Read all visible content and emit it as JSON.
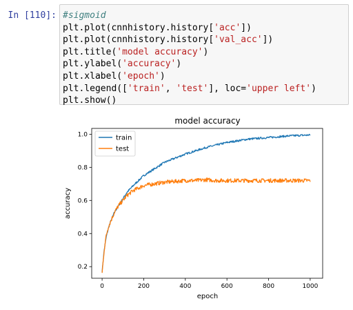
{
  "cell": {
    "prompt": "In [110]:",
    "code_lines": [
      [
        {
          "t": "#sigmoid",
          "c": "comment"
        }
      ],
      [
        {
          "t": "plt.plot(cnnhistory.history[",
          "c": ""
        },
        {
          "t": "'acc'",
          "c": "str"
        },
        {
          "t": "])",
          "c": ""
        }
      ],
      [
        {
          "t": "plt.plot(cnnhistory.history[",
          "c": ""
        },
        {
          "t": "'val_acc'",
          "c": "str"
        },
        {
          "t": "])",
          "c": ""
        }
      ],
      [
        {
          "t": "plt.title(",
          "c": ""
        },
        {
          "t": "'model accuracy'",
          "c": "str"
        },
        {
          "t": ")",
          "c": ""
        }
      ],
      [
        {
          "t": "plt.ylabel(",
          "c": ""
        },
        {
          "t": "'accuracy'",
          "c": "str"
        },
        {
          "t": ")",
          "c": ""
        }
      ],
      [
        {
          "t": "plt.xlabel(",
          "c": ""
        },
        {
          "t": "'epoch'",
          "c": "str"
        },
        {
          "t": ")",
          "c": ""
        }
      ],
      [
        {
          "t": "plt.legend([",
          "c": ""
        },
        {
          "t": "'train'",
          "c": "str"
        },
        {
          "t": ", ",
          "c": ""
        },
        {
          "t": "'test'",
          "c": "str"
        },
        {
          "t": "], loc=",
          "c": ""
        },
        {
          "t": "'upper left'",
          "c": "str"
        },
        {
          "t": ")",
          "c": ""
        }
      ],
      [
        {
          "t": "plt.show()",
          "c": ""
        }
      ]
    ]
  },
  "chart_data": {
    "type": "line",
    "title": "model accuracy",
    "xlabel": "epoch",
    "ylabel": "accuracy",
    "xlim": [
      -50,
      1060
    ],
    "ylim": [
      0.13,
      1.035
    ],
    "xticks": [
      0,
      200,
      400,
      600,
      800,
      1000
    ],
    "yticks": [
      0.2,
      0.4,
      0.6,
      0.8,
      1.0
    ],
    "ytick_labels": [
      "0.2",
      "0.4",
      "0.6",
      "0.8",
      "1.0"
    ],
    "legend_position": "upper-left",
    "series": [
      {
        "name": "train",
        "color": "#1f77b4",
        "x": [
          0,
          10,
          20,
          30,
          40,
          50,
          60,
          80,
          100,
          120,
          150,
          200,
          250,
          300,
          350,
          400,
          450,
          500,
          550,
          600,
          650,
          700,
          750,
          800,
          850,
          900,
          950,
          1000
        ],
        "y": [
          0.17,
          0.3,
          0.38,
          0.43,
          0.47,
          0.5,
          0.53,
          0.57,
          0.61,
          0.65,
          0.69,
          0.75,
          0.79,
          0.83,
          0.855,
          0.88,
          0.9,
          0.92,
          0.935,
          0.95,
          0.96,
          0.97,
          0.975,
          0.98,
          0.985,
          0.99,
          0.993,
          0.995
        ]
      },
      {
        "name": "test",
        "color": "#ff7f0e",
        "x": [
          0,
          10,
          20,
          30,
          40,
          50,
          60,
          80,
          100,
          120,
          150,
          200,
          250,
          300,
          350,
          400,
          450,
          500,
          550,
          600,
          650,
          700,
          750,
          800,
          850,
          900,
          950,
          1000
        ],
        "y": [
          0.16,
          0.3,
          0.39,
          0.44,
          0.47,
          0.5,
          0.53,
          0.57,
          0.6,
          0.63,
          0.66,
          0.69,
          0.7,
          0.71,
          0.715,
          0.72,
          0.72,
          0.725,
          0.72,
          0.72,
          0.72,
          0.72,
          0.72,
          0.72,
          0.72,
          0.72,
          0.72,
          0.72
        ]
      }
    ]
  }
}
